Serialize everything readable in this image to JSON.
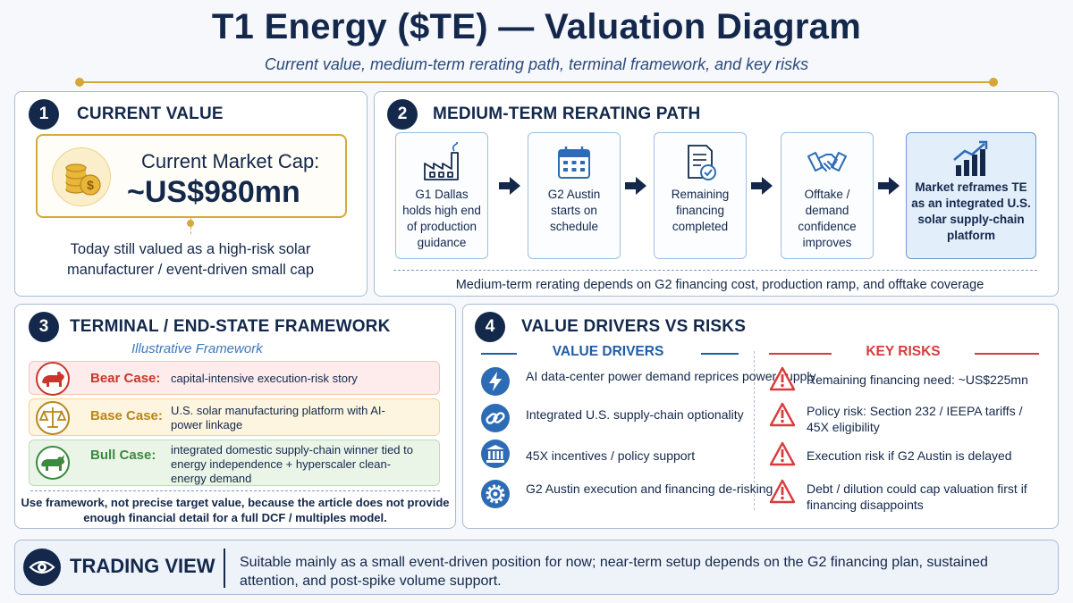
{
  "header": {
    "title": "T1 Energy ($TE) — Valuation Diagram",
    "subtitle": "Current value, medium-term rerating path, terminal framework, and key risks"
  },
  "colors": {
    "navy": "#13284b",
    "gold": "#d5a734",
    "blue": "#2d6cb5",
    "risk_red": "#d93b3b",
    "bear": "#c8372c",
    "base": "#b9861c",
    "bull": "#3b8a3e"
  },
  "panel1": {
    "number": "1",
    "title": "CURRENT VALUE",
    "market_cap_label": "Current Market Cap:",
    "market_cap_value": "~US$980mn",
    "icon": "coins-dollar-icon",
    "note": "Today still valued as a high-risk solar manufacturer / event-driven small cap"
  },
  "panel2": {
    "number": "2",
    "title": "MEDIUM-TERM RERATING PATH",
    "steps": [
      {
        "label": "G1 Dallas holds high end of production guidance",
        "icon": "factory-icon"
      },
      {
        "label": "G2 Austin starts on schedule",
        "icon": "calendar-icon"
      },
      {
        "label": "Remaining financing completed",
        "icon": "document-check-icon"
      },
      {
        "label": "Offtake / demand confidence improves",
        "icon": "handshake-icon"
      },
      {
        "label": "Market reframes TE as an integrated U.S. solar supply-chain platform",
        "icon": "bar-chart-up-icon"
      }
    ],
    "note": "Medium-term rerating depends on G2 financing cost, production ramp, and offtake coverage"
  },
  "panel3": {
    "number": "3",
    "title": "TERMINAL / END-STATE FRAMEWORK",
    "subtitle": "Illustrative Framework",
    "cases": [
      {
        "label": "Bear Case:",
        "desc": "capital-intensive execution-risk story",
        "icon": "bear-icon"
      },
      {
        "label": "Base Case:",
        "desc": "U.S. solar manufacturing platform with AI-power linkage",
        "icon": "scales-icon"
      },
      {
        "label": "Bull Case:",
        "desc": "integrated domestic supply-chain winner tied to energy independence + hyperscaler clean-energy demand",
        "icon": "bull-icon"
      }
    ],
    "note": "Use framework, not precise target value, because the article does not provide enough financial detail for a full DCF / multiples model."
  },
  "panel4": {
    "number": "4",
    "title": "VALUE DRIVERS VS RISKS",
    "drivers_heading": "VALUE DRIVERS",
    "risks_heading": "KEY RISKS",
    "drivers": [
      {
        "text": "AI data-center power demand reprices power supply",
        "icon": "lightning-icon"
      },
      {
        "text": "Integrated U.S. supply-chain optionality",
        "icon": "chain-link-icon"
      },
      {
        "text": "45X incentives / policy support",
        "icon": "government-building-icon"
      },
      {
        "text": "G2 Austin execution and financing de-risking",
        "icon": "gear-icon"
      }
    ],
    "risks": [
      {
        "text": "Remaining financing need: ~US$225mn",
        "icon": "warning-icon"
      },
      {
        "text": "Policy risk: Section 232 / IEEPA tariffs / 45X eligibility",
        "icon": "warning-icon"
      },
      {
        "text": "Execution risk if G2 Austin is delayed",
        "icon": "warning-icon"
      },
      {
        "text": "Debt / dilution could cap valuation first if financing disappoints",
        "icon": "warning-icon"
      }
    ]
  },
  "trading_view": {
    "title": "TRADING VIEW",
    "icon": "eye-icon",
    "text": "Suitable mainly as a small event-driven position for now; near-term setup depends on the G2 financing plan, sustained attention, and post-spike volume support."
  }
}
